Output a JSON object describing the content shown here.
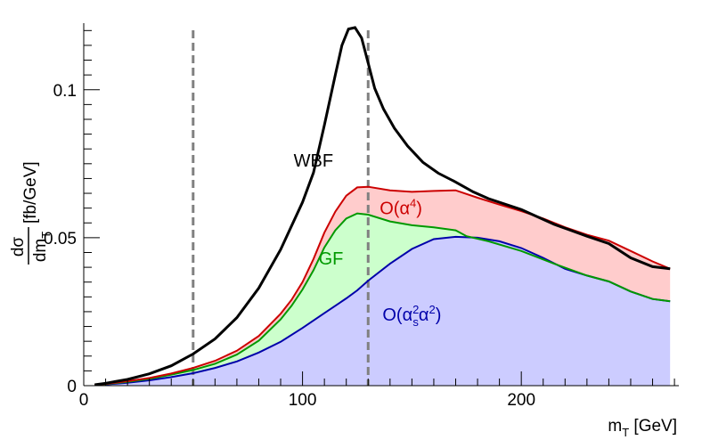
{
  "chart_data": {
    "type": "area",
    "title": "",
    "xlabel": {
      "main": "m",
      "sub": "T",
      "unit": " [GeV]"
    },
    "ylabel": {
      "num": "dσ",
      "den_main": "dm",
      "den_sub": "T",
      "unit": " [fb/GeV]"
    },
    "xlim": [
      0,
      272
    ],
    "ylim": [
      0,
      0.1225
    ],
    "x_ticks": [
      {
        "value": 0,
        "label": "0"
      },
      {
        "value": 100,
        "label": "100"
      },
      {
        "value": 200,
        "label": "200"
      }
    ],
    "y_ticks": [
      {
        "value": 0,
        "label": "0"
      },
      {
        "value": 0.05,
        "label": "0.05"
      },
      {
        "value": 0.1,
        "label": "0.1"
      }
    ],
    "cut_lines": [
      50,
      130
    ],
    "series": [
      {
        "name": "WBF",
        "color": "#000000",
        "fill": "none",
        "label_pos": [
          105,
          0.074
        ],
        "points": [
          [
            5,
            0.0003
          ],
          [
            10,
            0.0008
          ],
          [
            20,
            0.0021
          ],
          [
            30,
            0.004
          ],
          [
            40,
            0.0067
          ],
          [
            50,
            0.0107
          ],
          [
            60,
            0.0158
          ],
          [
            70,
            0.023
          ],
          [
            80,
            0.033
          ],
          [
            90,
            0.046
          ],
          [
            100,
            0.062
          ],
          [
            105,
            0.072
          ],
          [
            110,
            0.088
          ],
          [
            115,
            0.105
          ],
          [
            118,
            0.115
          ],
          [
            121,
            0.1205
          ],
          [
            124,
            0.121
          ],
          [
            127,
            0.1175
          ],
          [
            130,
            0.109
          ],
          [
            133,
            0.1005
          ],
          [
            137,
            0.0935
          ],
          [
            142,
            0.087
          ],
          [
            148,
            0.081
          ],
          [
            155,
            0.0755
          ],
          [
            162,
            0.0718
          ],
          [
            170,
            0.0688
          ],
          [
            178,
            0.0655
          ],
          [
            185,
            0.0632
          ],
          [
            200,
            0.0595
          ],
          [
            215,
            0.0545
          ],
          [
            230,
            0.0505
          ],
          [
            240,
            0.048
          ],
          [
            250,
            0.0432
          ],
          [
            260,
            0.0402
          ],
          [
            268,
            0.0395
          ]
        ]
      },
      {
        "name": "O(α⁴)",
        "label_parts": [
          "O(α",
          "4",
          ")"
        ],
        "color": "#cc0000",
        "fill": "#ffcccc",
        "label_pos": [
          145,
          0.058
        ],
        "points": [
          [
            5,
            0.0002
          ],
          [
            10,
            0.0006
          ],
          [
            20,
            0.0015
          ],
          [
            30,
            0.0026
          ],
          [
            40,
            0.0041
          ],
          [
            50,
            0.006
          ],
          [
            60,
            0.0084
          ],
          [
            70,
            0.0118
          ],
          [
            80,
            0.0168
          ],
          [
            90,
            0.0243
          ],
          [
            95,
            0.029
          ],
          [
            100,
            0.035
          ],
          [
            105,
            0.0428
          ],
          [
            110,
            0.0517
          ],
          [
            115,
            0.0588
          ],
          [
            120,
            0.0642
          ],
          [
            125,
            0.067
          ],
          [
            130,
            0.0672
          ],
          [
            140,
            0.066
          ],
          [
            150,
            0.0655
          ],
          [
            160,
            0.0658
          ],
          [
            170,
            0.066
          ],
          [
            180,
            0.0635
          ],
          [
            190,
            0.0612
          ],
          [
            200,
            0.059
          ],
          [
            210,
            0.0565
          ],
          [
            220,
            0.0535
          ],
          [
            230,
            0.051
          ],
          [
            240,
            0.049
          ],
          [
            250,
            0.0455
          ],
          [
            260,
            0.042
          ],
          [
            268,
            0.0395
          ]
        ]
      },
      {
        "name": "GF",
        "color": "#009900",
        "fill": "#ccffcc",
        "label_pos": [
          113,
          0.041
        ],
        "points": [
          [
            5,
            0.0002
          ],
          [
            10,
            0.0005
          ],
          [
            20,
            0.0013
          ],
          [
            30,
            0.0023
          ],
          [
            40,
            0.0037
          ],
          [
            50,
            0.0053
          ],
          [
            60,
            0.0074
          ],
          [
            70,
            0.0105
          ],
          [
            80,
            0.0152
          ],
          [
            90,
            0.0224
          ],
          [
            95,
            0.027
          ],
          [
            100,
            0.0325
          ],
          [
            105,
            0.039
          ],
          [
            110,
            0.0467
          ],
          [
            115,
            0.0525
          ],
          [
            120,
            0.0565
          ],
          [
            125,
            0.0582
          ],
          [
            130,
            0.0578
          ],
          [
            140,
            0.0555
          ],
          [
            150,
            0.0542
          ],
          [
            160,
            0.0535
          ],
          [
            170,
            0.0525
          ],
          [
            175,
            0.0505
          ],
          [
            185,
            0.0488
          ],
          [
            200,
            0.0455
          ],
          [
            215,
            0.0412
          ],
          [
            230,
            0.0372
          ],
          [
            240,
            0.0352
          ],
          [
            250,
            0.0318
          ],
          [
            260,
            0.0293
          ],
          [
            268,
            0.0285
          ]
        ]
      },
      {
        "name": "O(αs²α²)",
        "label_parts": [
          "O(α",
          "2",
          "s",
          "α",
          "2",
          ")"
        ],
        "color": "#0000aa",
        "fill": "#ccccff",
        "label_pos": [
          150,
          0.022
        ],
        "points": [
          [
            5,
            0.0002
          ],
          [
            10,
            0.0004
          ],
          [
            20,
            0.001
          ],
          [
            30,
            0.0018
          ],
          [
            40,
            0.0029
          ],
          [
            50,
            0.0042
          ],
          [
            60,
            0.006
          ],
          [
            70,
            0.0082
          ],
          [
            80,
            0.0112
          ],
          [
            90,
            0.0148
          ],
          [
            100,
            0.0195
          ],
          [
            110,
            0.0245
          ],
          [
            120,
            0.0295
          ],
          [
            125,
            0.0322
          ],
          [
            130,
            0.0355
          ],
          [
            140,
            0.0412
          ],
          [
            150,
            0.0462
          ],
          [
            160,
            0.0495
          ],
          [
            170,
            0.0503
          ],
          [
            180,
            0.05
          ],
          [
            190,
            0.0488
          ],
          [
            200,
            0.0465
          ],
          [
            210,
            0.0432
          ],
          [
            220,
            0.0395
          ],
          [
            230,
            0.0372
          ],
          [
            240,
            0.0352
          ],
          [
            250,
            0.0318
          ],
          [
            260,
            0.0293
          ],
          [
            268,
            0.0285
          ]
        ]
      }
    ]
  }
}
